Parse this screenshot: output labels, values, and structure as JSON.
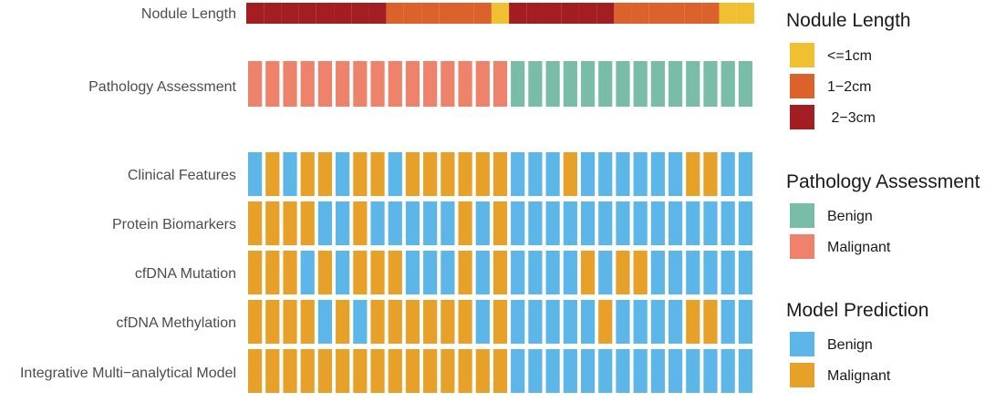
{
  "chart_data": {
    "type": "heatmap",
    "n_samples": 29,
    "tracks": {
      "nodule_length": {
        "label": "Nodule Length",
        "values": [
          "2-3cm",
          "2-3cm",
          "2-3cm",
          "2-3cm",
          "2-3cm",
          "2-3cm",
          "2-3cm",
          "2-3cm",
          "1-2cm",
          "1-2cm",
          "1-2cm",
          "1-2cm",
          "1-2cm",
          "1-2cm",
          "<=1cm",
          "2-3cm",
          "2-3cm",
          "2-3cm",
          "2-3cm",
          "2-3cm",
          "2-3cm",
          "1-2cm",
          "1-2cm",
          "1-2cm",
          "1-2cm",
          "1-2cm",
          "1-2cm",
          "<=1cm",
          "<=1cm"
        ]
      },
      "pathology": {
        "label": "Pathology Assessment",
        "values": [
          "M",
          "M",
          "M",
          "M",
          "M",
          "M",
          "M",
          "M",
          "M",
          "M",
          "M",
          "M",
          "M",
          "M",
          "M",
          "B",
          "B",
          "B",
          "B",
          "B",
          "B",
          "B",
          "B",
          "B",
          "B",
          "B",
          "B",
          "B",
          "B"
        ]
      }
    },
    "models": [
      {
        "label": "Clinical Features",
        "values": "BMBMMBMMBMMMMMMBBBMBBBBBBMMBB"
      },
      {
        "label": "Protein Biomarkers",
        "values": "MMMMBBMBBBBBMBMBBBBBBBBBBBBBB"
      },
      {
        "label": "cfDNA Mutation",
        "values": "MMMBMBMMMBBBMBMBBBBMBMMBBBBBB"
      },
      {
        "label": "cfDNA Methylation",
        "values": "MMMMBMBMMMMMMBMBBBBBMBBBBMMBB"
      },
      {
        "label": "Integrative Multi−analytical Model",
        "values": "MMMMMMMMMMMMMMMBBBBBBBBBBBBBB"
      }
    ],
    "legends": [
      {
        "title": "Nodule Length",
        "items": [
          {
            "label": "<=1cm",
            "color": "#F0C030"
          },
          {
            "label": "1−2cm",
            "color": "#DB622B"
          },
          {
            "label": " 2−3cm",
            "color": "#A31E22"
          }
        ]
      },
      {
        "title": "Pathology Assessment",
        "items": [
          {
            "label": "Benign",
            "color": "#79BCA8"
          },
          {
            "label": "Malignant",
            "color": "#EE826B"
          }
        ]
      },
      {
        "title": "Model Prediction",
        "items": [
          {
            "label": "Benign",
            "color": "#5CB6E8"
          },
          {
            "label": "Malignant",
            "color": "#E8A128"
          }
        ]
      }
    ],
    "colors": {
      "nodule": {
        "<=1cm": "#F0C030",
        "1-2cm": "#DB622B",
        "2-3cm": "#A31E22"
      },
      "pathology": {
        "B": "#79BCA8",
        "M": "#EE826B"
      },
      "prediction": {
        "B": "#5CB6E8",
        "M": "#E8A128"
      }
    }
  }
}
